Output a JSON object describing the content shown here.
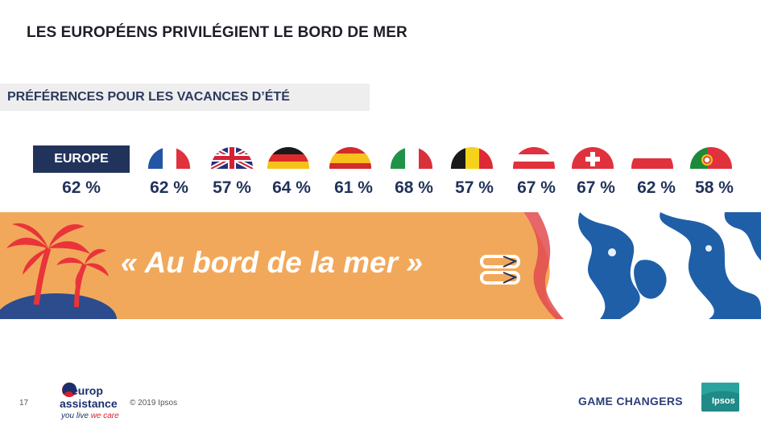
{
  "slide": {
    "title": "LES EUROPÉENS PRIVILÉGIENT LE BORD DE MER",
    "subtitle": "PRÉFÉRENCES POUR LES VACANCES D’ÉTÉ",
    "europe": {
      "label": "EUROPE",
      "value": "62 %"
    },
    "countries": [
      {
        "flag": "france-flag",
        "value": "62 %"
      },
      {
        "flag": "uk-flag",
        "value": "57 %"
      },
      {
        "flag": "germany-flag",
        "value": "64 %"
      },
      {
        "flag": "spain-flag",
        "value": "61 %"
      },
      {
        "flag": "italy-flag",
        "value": "68 %"
      },
      {
        "flag": "belgium-flag",
        "value": "57 %"
      },
      {
        "flag": "austria-flag",
        "value": "67 %"
      },
      {
        "flag": "switzerland-flag",
        "value": "67 %"
      },
      {
        "flag": "poland-flag",
        "value": "62 %"
      },
      {
        "flag": "portugal-flag",
        "value": "58 %"
      }
    ],
    "banner_text": "« Au bord de la mer »"
  },
  "footer": {
    "page_number": "17",
    "logo_line1": "europ",
    "logo_line2": "assistance",
    "logo_tagline_a": "you live ",
    "logo_tagline_b": "we care",
    "copyright": "© 2019 Ipsos",
    "brand_tagline": "GAME CHANGERS",
    "ipsos_label": "Ipsos"
  },
  "colors": {
    "navy": "#22335b",
    "banner_orange": "#f2a85a",
    "palm_red": "#e8343a",
    "island_blue": "#2c4c8e",
    "ipsos_teal": "#1f8a87"
  }
}
